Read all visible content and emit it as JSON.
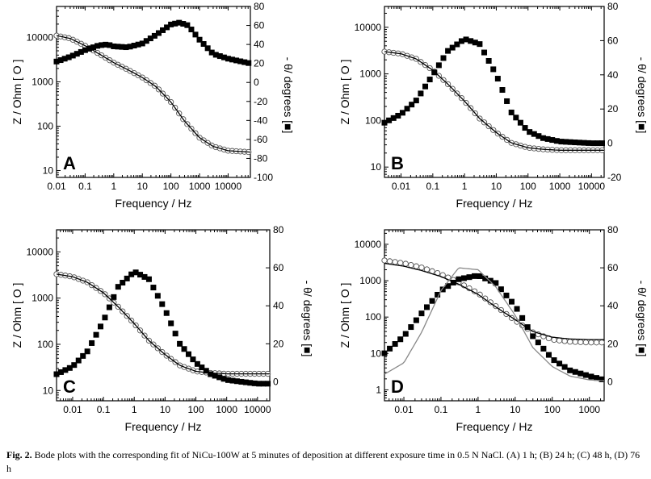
{
  "figure": {
    "caption_label": "Fig. 2.",
    "caption_text": "Bode plots with the corresponding fit of NiCu-100W at 5 minutes of deposition at different exposure time in 0.5 N NaCl. (A) 1 h; (B) 24 h; (C) 48 h, (D) 76 h"
  },
  "chart_data": [
    {
      "type": "line",
      "panel_label": "A",
      "title": "",
      "xlabel": "Frequency / Hz",
      "ylabel": "Z / Ohm  [ O ]",
      "y2label": "- θ/ degrees  [■]",
      "xscale": "log",
      "yscale": "log",
      "xlim": [
        0.01,
        60000
      ],
      "ylim": [
        7,
        50000
      ],
      "y2lim": [
        -100,
        80
      ],
      "x_ticks": [
        "0.01",
        "0.1",
        "1",
        "10",
        "100",
        "1000",
        "10000"
      ],
      "y_ticks": [
        "10",
        "100",
        "1000",
        "10000"
      ],
      "y2_ticks": [
        "-100",
        "-80",
        "-60",
        "-40",
        "-20",
        "0",
        "20",
        "40",
        "60",
        "80"
      ],
      "series": [
        {
          "name": "|Z| measured (open circles)",
          "axis": "left",
          "x": [
            0.01,
            0.03,
            0.1,
            0.3,
            1,
            3,
            10,
            30,
            100,
            300,
            1000,
            3000,
            10000,
            60000
          ],
          "values": [
            11000,
            9500,
            6500,
            4300,
            2700,
            1900,
            1250,
            780,
            350,
            130,
            55,
            35,
            28,
            26
          ]
        },
        {
          "name": "|Z| fit",
          "axis": "left",
          "x": [
            0.01,
            0.03,
            0.1,
            0.3,
            1,
            3,
            10,
            30,
            100,
            300,
            1000,
            3000,
            10000,
            60000
          ],
          "values": [
            11000,
            9500,
            6500,
            4300,
            2700,
            1900,
            1250,
            780,
            350,
            130,
            55,
            35,
            28,
            26
          ]
        },
        {
          "name": "-θ measured (filled squares)",
          "axis": "right",
          "x": [
            0.01,
            0.03,
            0.1,
            0.3,
            0.6,
            1,
            3,
            10,
            30,
            100,
            200,
            400,
            1000,
            3000,
            10000,
            60000
          ],
          "values": [
            22,
            27,
            34,
            39,
            40,
            38,
            37,
            41,
            50,
            61,
            63,
            60,
            45,
            30,
            25,
            20
          ]
        }
      ]
    },
    {
      "type": "line",
      "panel_label": "B",
      "title": "",
      "xlabel": "Frequency / Hz",
      "ylabel": "Z / Ohm  [ O ]",
      "y2label": "- θ/ degrees  [■]",
      "xscale": "log",
      "yscale": "log",
      "xlim": [
        0.003,
        25000
      ],
      "ylim": [
        6,
        28000
      ],
      "y2lim": [
        -20,
        80
      ],
      "x_ticks": [
        "0.01",
        "0.1",
        "1",
        "10",
        "100",
        "1000",
        "10000"
      ],
      "y_ticks": [
        "10",
        "100",
        "1000",
        "10000"
      ],
      "y2_ticks": [
        "-20",
        "0",
        "20",
        "40",
        "60",
        "80"
      ],
      "series": [
        {
          "name": "|Z| measured (open circles)",
          "axis": "left",
          "x": [
            0.003,
            0.01,
            0.03,
            0.1,
            0.3,
            1,
            3,
            10,
            30,
            100,
            300,
            1000,
            3000,
            10000,
            25000
          ],
          "values": [
            3000,
            2700,
            2100,
            1200,
            600,
            260,
            110,
            55,
            33,
            26,
            24,
            23,
            23,
            23,
            23
          ]
        },
        {
          "name": "|Z| fit",
          "axis": "left",
          "x": [
            0.003,
            0.01,
            0.03,
            0.1,
            0.3,
            1,
            3,
            10,
            30,
            100,
            300,
            1000,
            3000,
            10000,
            25000
          ],
          "values": [
            3000,
            2700,
            2100,
            1200,
            600,
            260,
            110,
            55,
            33,
            26,
            24,
            23,
            23,
            23,
            23
          ]
        },
        {
          "name": "-θ measured (filled squares)",
          "axis": "right",
          "x": [
            0.003,
            0.01,
            0.03,
            0.1,
            0.3,
            1,
            3,
            10,
            30,
            100,
            300,
            1000,
            3000,
            10000,
            25000
          ],
          "values": [
            12,
            17,
            25,
            40,
            54,
            61,
            58,
            40,
            18,
            7,
            3,
            1,
            0.5,
            0,
            0
          ]
        }
      ]
    },
    {
      "type": "line",
      "panel_label": "C",
      "title": "",
      "xlabel": "Frequency / Hz",
      "ylabel": "Z / Ohm  [ O ]",
      "y2label": "- θ/ degrees  [■]",
      "xscale": "log",
      "yscale": "log",
      "xlim": [
        0.003,
        25000
      ],
      "ylim": [
        6,
        30000
      ],
      "y2lim": [
        -10,
        80
      ],
      "x_ticks": [
        "0.01",
        "0.1",
        "1",
        "10",
        "100",
        "1000",
        "10000"
      ],
      "y_ticks": [
        "10",
        "100",
        "1000",
        "10000"
      ],
      "y2_ticks": [
        "0",
        "20",
        "40",
        "60",
        "80"
      ],
      "series": [
        {
          "name": "|Z| measured (open circles)",
          "axis": "left",
          "x": [
            0.003,
            0.01,
            0.03,
            0.1,
            0.3,
            1,
            3,
            10,
            30,
            100,
            300,
            1000,
            3000,
            10000,
            25000
          ],
          "values": [
            3300,
            2900,
            2200,
            1300,
            650,
            280,
            120,
            60,
            35,
            26,
            24,
            23,
            23,
            23,
            23
          ]
        },
        {
          "name": "|Z| fit",
          "axis": "left",
          "x": [
            0.003,
            0.01,
            0.03,
            0.1,
            0.3,
            1,
            3,
            10,
            30,
            100,
            300,
            1000,
            3000,
            10000,
            25000
          ],
          "values": [
            3300,
            2900,
            2200,
            1300,
            650,
            280,
            120,
            60,
            35,
            26,
            24,
            23,
            23,
            23,
            23
          ]
        },
        {
          "name": "-θ measured (filled squares)",
          "axis": "right",
          "x": [
            0.003,
            0.01,
            0.03,
            0.1,
            0.3,
            1,
            3,
            10,
            30,
            100,
            300,
            1000,
            3000,
            10000,
            25000
          ],
          "values": [
            4,
            8,
            16,
            32,
            50,
            58,
            54,
            38,
            20,
            10,
            4,
            1,
            0,
            -1,
            -1
          ]
        }
      ]
    },
    {
      "type": "line",
      "panel_label": "D",
      "title": "",
      "xlabel": "Frequency / Hz",
      "ylabel": "Z / Ohm  [ O ]",
      "y2label": "- θ/ degrees  [■]",
      "xscale": "log",
      "yscale": "log",
      "xlim": [
        0.003,
        2500
      ],
      "ylim": [
        0.5,
        25000
      ],
      "y2lim": [
        -10,
        80
      ],
      "x_ticks": [
        "0.01",
        "0.1",
        "1",
        "10",
        "100",
        "1000"
      ],
      "y_ticks": [
        "1",
        "10",
        "100",
        "1000",
        "10000"
      ],
      "y2_ticks": [
        "0",
        "20",
        "40",
        "60",
        "80"
      ],
      "series": [
        {
          "name": "|Z| measured (open circles)",
          "axis": "left",
          "x": [
            0.003,
            0.01,
            0.03,
            0.1,
            0.3,
            1,
            3,
            10,
            30,
            100,
            300,
            1000,
            2500
          ],
          "values": [
            3600,
            3000,
            2300,
            1500,
            900,
            450,
            200,
            80,
            38,
            24,
            21,
            20,
            20
          ]
        },
        {
          "name": "|Z| fit (black)",
          "axis": "left",
          "x": [
            0.003,
            0.01,
            0.03,
            0.1,
            0.3,
            1,
            3,
            10,
            30,
            100,
            300,
            1000,
            2500
          ],
          "values": [
            3000,
            2500,
            1900,
            1300,
            800,
            420,
            190,
            85,
            40,
            28,
            25,
            24,
            24
          ]
        },
        {
          "name": "-θ measured (filled squares)",
          "axis": "right",
          "x": [
            0.003,
            0.01,
            0.03,
            0.1,
            0.3,
            1,
            3,
            10,
            30,
            100,
            300,
            1000,
            2500
          ],
          "values": [
            15,
            24,
            36,
            48,
            54,
            56,
            52,
            40,
            24,
            12,
            6,
            3,
            1
          ]
        },
        {
          "name": "-θ fit (gray)",
          "axis": "right",
          "x": [
            0.003,
            0.01,
            0.03,
            0.1,
            0.3,
            1,
            3,
            10,
            30,
            100,
            300,
            1000,
            2500
          ],
          "values": [
            4,
            10,
            26,
            48,
            60,
            59,
            50,
            35,
            18,
            8,
            3,
            1,
            0.5
          ]
        }
      ]
    }
  ]
}
